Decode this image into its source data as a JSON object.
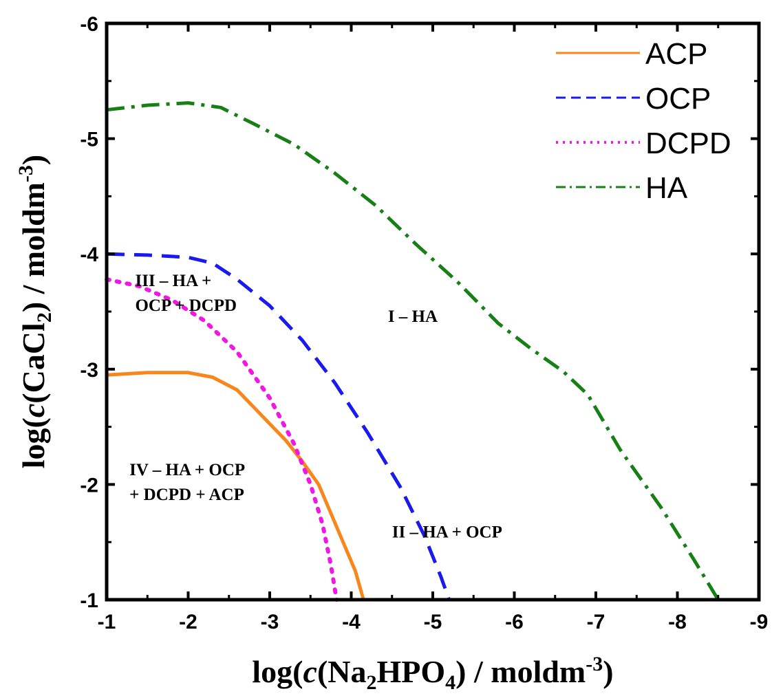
{
  "chart_data": {
    "type": "line",
    "xlabel": {
      "pre": "log(",
      "ital": "c",
      "post1": "(Na",
      "sub1": "2",
      "mid": "HPO",
      "sub2": "4",
      "post2": ") / moldm",
      "sup": "-3",
      "end": ")"
    },
    "ylabel": {
      "pre": "log(",
      "ital": "c",
      "post1": "(CaCl",
      "sub1": "2",
      "post2": ") / moldm",
      "sup": "-3",
      "end": ")"
    },
    "xlim": [
      -1,
      -9
    ],
    "ylim": [
      -1,
      -6
    ],
    "x_ticks": [
      -1,
      -2,
      -3,
      -4,
      -5,
      -6,
      -7,
      -8,
      -9
    ],
    "x_tick_labels": [
      "-1",
      "-2",
      "-3",
      "-4",
      "-5",
      "-6",
      "-7",
      "-8",
      "-9"
    ],
    "y_ticks": [
      -1,
      -2,
      -3,
      -4,
      -5,
      -6
    ],
    "y_tick_labels": [
      "-1",
      "-2",
      "-3",
      "-4",
      "-5",
      "-6"
    ],
    "legend_position": "top-right",
    "series": [
      {
        "name": "ACP",
        "color": "#f7861c",
        "style": "solid",
        "x": [
          -1,
          -1.5,
          -2,
          -2.3,
          -2.6,
          -2.9,
          -3.2,
          -3.4,
          -3.6,
          -3.75,
          -3.9,
          -4.05,
          -4.15
        ],
        "y": [
          -2.95,
          -2.97,
          -2.97,
          -2.93,
          -2.82,
          -2.6,
          -2.38,
          -2.2,
          -2.0,
          -1.75,
          -1.5,
          -1.25,
          -1.0
        ]
      },
      {
        "name": "OCP",
        "color": "#1a1af0",
        "style": "dashed",
        "x": [
          -1,
          -1.5,
          -2,
          -2.3,
          -2.6,
          -3.0,
          -3.4,
          -3.8,
          -4.2,
          -4.6,
          -4.9,
          -5.1,
          -5.2
        ],
        "y": [
          -4.0,
          -3.99,
          -3.97,
          -3.92,
          -3.78,
          -3.55,
          -3.25,
          -2.88,
          -2.45,
          -1.98,
          -1.55,
          -1.2,
          -1.0
        ]
      },
      {
        "name": "DCPD",
        "color": "#f018e0",
        "style": "dotted",
        "x": [
          -1,
          -1.4,
          -1.8,
          -2.2,
          -2.6,
          -3.0,
          -3.3,
          -3.5,
          -3.65,
          -3.75,
          -3.82
        ],
        "y": [
          -3.78,
          -3.72,
          -3.6,
          -3.42,
          -3.15,
          -2.75,
          -2.35,
          -2.0,
          -1.65,
          -1.3,
          -1.0
        ]
      },
      {
        "name": "HA",
        "color": "#168016",
        "style": "dashdot",
        "x": [
          -1,
          -1.5,
          -2,
          -2.4,
          -2.8,
          -3.3,
          -3.8,
          -4.3,
          -4.8,
          -5.3,
          -5.8,
          -6.2,
          -6.6,
          -6.9,
          -7.3,
          -7.8,
          -8.2,
          -8.5
        ],
        "y": [
          -5.25,
          -5.29,
          -5.31,
          -5.27,
          -5.13,
          -4.95,
          -4.7,
          -4.42,
          -4.08,
          -3.76,
          -3.4,
          -3.18,
          -2.98,
          -2.78,
          -2.3,
          -1.8,
          -1.35,
          -1.0
        ]
      }
    ],
    "annotations": [
      {
        "line1": "III – HA +",
        "line2": "OCP + DCPD",
        "x": -1.35,
        "y": -3.72
      },
      {
        "line1": "I – HA",
        "line2": "",
        "x": -4.45,
        "y": -3.41
      },
      {
        "line1": "IV – HA + OCP",
        "line2": "+ DCPD + ACP",
        "x": -1.28,
        "y": -2.08
      },
      {
        "line1": "II – HA + OCP",
        "line2": "",
        "x": -4.5,
        "y": -1.54
      }
    ]
  }
}
